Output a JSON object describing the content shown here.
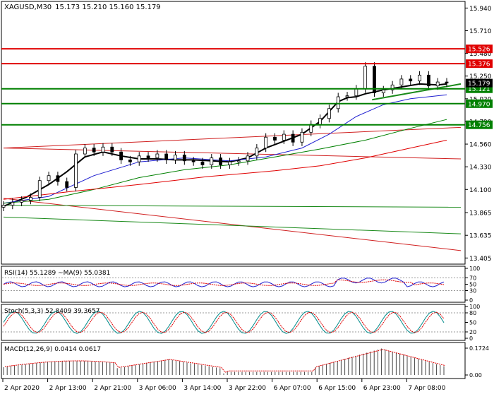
{
  "chart_data": {
    "type": "line",
    "symbol": "XAGUSD,M30",
    "ohlc": "15.173 15.210 15.160 15.179",
    "price_axis": {
      "ylim": [
        13.35,
        16.0
      ],
      "ticks": [
        "15.940",
        "15.710",
        "15.480",
        "15.250",
        "15.020",
        "14.790",
        "14.560",
        "14.330",
        "14.100",
        "13.865",
        "13.635",
        "13.405"
      ]
    },
    "time_axis": {
      "labels": [
        "2 Apr 2020",
        "2 Apr 13:00",
        "2 Apr 21:00",
        "3 Apr 06:00",
        "3 Apr 14:00",
        "3 Apr 22:00",
        "6 Apr 07:00",
        "6 Apr 15:00",
        "6 Apr 23:00",
        "7 Apr 08:00"
      ]
    },
    "levels": [
      {
        "value": 15.526,
        "label": "15.526",
        "color": "#e00000"
      },
      {
        "value": 15.376,
        "label": "15.376",
        "color": "#e00000"
      },
      {
        "value": 15.121,
        "label": "15.121",
        "color": "#008000"
      },
      {
        "value": 14.97,
        "label": "14.970",
        "color": "#008000"
      },
      {
        "value": 14.756,
        "label": "14.756",
        "color": "#008000"
      }
    ],
    "current_price": {
      "value": 15.179,
      "label": "15.179"
    },
    "series": [
      {
        "kind": "close",
        "x": [
          0,
          4,
          8,
          12,
          16,
          20,
          24,
          28,
          32,
          36,
          40,
          44,
          48,
          52,
          56,
          60,
          64,
          68,
          72,
          76,
          80,
          84,
          88,
          92,
          96,
          100,
          104,
          108,
          112,
          116,
          120,
          124,
          128,
          132,
          136,
          140,
          144,
          148,
          152,
          156,
          160,
          164,
          168,
          172,
          176,
          180,
          184,
          188,
          192,
          196
        ],
        "y": [
          13.94,
          13.97,
          13.99,
          14.02,
          14.19,
          14.24,
          14.18,
          14.12,
          14.46,
          14.52,
          14.48,
          14.53,
          14.48,
          14.4,
          14.38,
          14.44,
          14.42,
          14.46,
          14.4,
          14.45,
          14.39,
          14.38,
          14.35,
          14.42,
          14.35,
          14.38,
          14.39,
          14.44,
          14.52,
          14.63,
          14.6,
          14.66,
          14.58,
          14.68,
          14.76,
          14.82,
          14.92,
          15.04,
          15.05,
          15.12,
          15.35,
          15.08,
          15.11,
          15.16,
          15.22,
          15.2,
          15.26,
          15.15,
          15.19,
          15.179
        ]
      },
      {
        "kind": "ma-fast",
        "color": "#000000",
        "x": [
          0,
          10,
          20,
          28,
          36,
          44,
          52,
          60,
          68,
          76,
          84,
          92,
          100,
          108,
          116,
          124,
          132,
          140,
          148,
          152,
          156,
          160,
          164,
          168,
          176,
          184,
          192,
          196
        ],
        "y": [
          13.93,
          14.02,
          14.15,
          14.28,
          14.43,
          14.48,
          14.44,
          14.41,
          14.41,
          14.4,
          14.4,
          14.39,
          14.38,
          14.42,
          14.52,
          14.59,
          14.66,
          14.79,
          14.99,
          15.03,
          15.04,
          15.07,
          15.09,
          15.11,
          15.14,
          15.17,
          15.16,
          15.17
        ]
      },
      {
        "kind": "ma-slow",
        "color": "#1f1fd0",
        "x": [
          0,
          20,
          40,
          60,
          80,
          100,
          116,
          132,
          144,
          156,
          168,
          180,
          196
        ],
        "y": [
          13.96,
          14.03,
          14.24,
          14.38,
          14.42,
          14.39,
          14.43,
          14.52,
          14.66,
          14.84,
          14.96,
          15.02,
          15.06
        ]
      },
      {
        "kind": "ma-long",
        "color": "#008000",
        "x": [
          0,
          20,
          40,
          60,
          80,
          100,
          120,
          140,
          160,
          180,
          196
        ],
        "y": [
          13.96,
          14.0,
          14.1,
          14.22,
          14.3,
          14.35,
          14.43,
          14.51,
          14.6,
          14.72,
          14.81
        ]
      },
      {
        "kind": "ma-longest",
        "color": "#e00000",
        "x": [
          0,
          30,
          60,
          90,
          120,
          140,
          160,
          180,
          196
        ],
        "y": [
          14.0,
          14.08,
          14.15,
          14.23,
          14.29,
          14.34,
          14.42,
          14.52,
          14.6
        ]
      }
    ],
    "panels": [
      {
        "name": "rsi",
        "label": "RSI(14) 55.1289 ~MA(9) 55.0381",
        "ticks": [
          "100",
          "70",
          "50",
          "30",
          "0"
        ]
      },
      {
        "name": "stoch",
        "label": "Stoch(5,3,3) 52.8409 39.3657",
        "ticks": [
          "100",
          "80",
          "50",
          "20",
          "0"
        ]
      },
      {
        "name": "macd",
        "label": "MACD(12,26,9) 0.0414 0.0617",
        "ticks": [
          "0.1724",
          "0.00"
        ],
        "max": 0.1724
      }
    ]
  }
}
